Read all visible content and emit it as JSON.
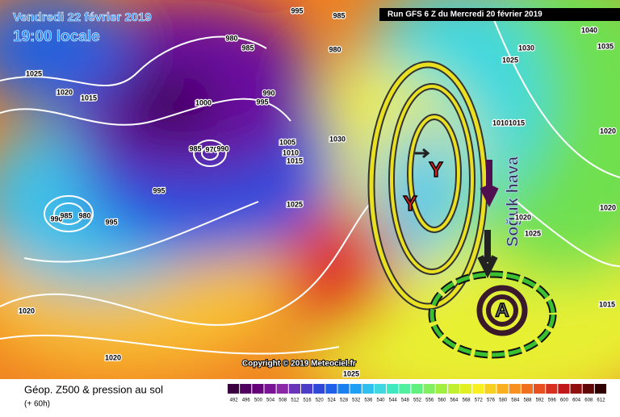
{
  "header": {
    "valid_date": "Vendredi 22 février 2019",
    "valid_time": "19:00 locale",
    "run": "Run GFS 6 Z du Mercredi 20 février 2019"
  },
  "isobar_labels": [
    "995",
    "985",
    "980",
    "985",
    "980",
    "1025",
    "1020",
    "1015",
    "1000",
    "990",
    "995",
    "1005",
    "1010",
    "1015",
    "985",
    "970",
    "990",
    "995",
    "990",
    "985",
    "980",
    "995",
    "1025",
    "1020",
    "1020",
    "1025",
    "1040",
    "1035",
    "1030",
    "1025",
    "1010",
    "1015",
    "1020",
    "1020",
    "1015",
    "1020",
    "1025",
    "1030"
  ],
  "annotations": {
    "low_1": "Y",
    "low_2": "Y",
    "high": "A",
    "cold_air": "Soğuk hava"
  },
  "copyright": "Copyright © 2019 Meteociel.fr",
  "footer": {
    "title": "Géop. Z500 & pression au sol",
    "lead": "(+ 60h)"
  },
  "colorbar": {
    "labels": [
      492,
      496,
      500,
      504,
      508,
      512,
      516,
      520,
      524,
      528,
      532,
      536,
      540,
      544,
      548,
      552,
      556,
      560,
      564,
      568,
      572,
      576,
      580,
      584,
      588,
      592,
      596,
      600,
      604,
      608,
      612
    ],
    "colors": [
      "#3a0040",
      "#50005e",
      "#66007a",
      "#7a1494",
      "#8a28a8",
      "#6a34b8",
      "#4c3cc8",
      "#3048d8",
      "#2060e8",
      "#1a80f0",
      "#20a0f4",
      "#30c0f0",
      "#40d8e0",
      "#40e8c0",
      "#50f0a0",
      "#60f080",
      "#80f060",
      "#a0f040",
      "#c0f030",
      "#e0f020",
      "#f8f020",
      "#f8d020",
      "#f8b020",
      "#f89020",
      "#f07020",
      "#e85020",
      "#d83020",
      "#c01818",
      "#901010",
      "#600808",
      "#300000"
    ]
  }
}
